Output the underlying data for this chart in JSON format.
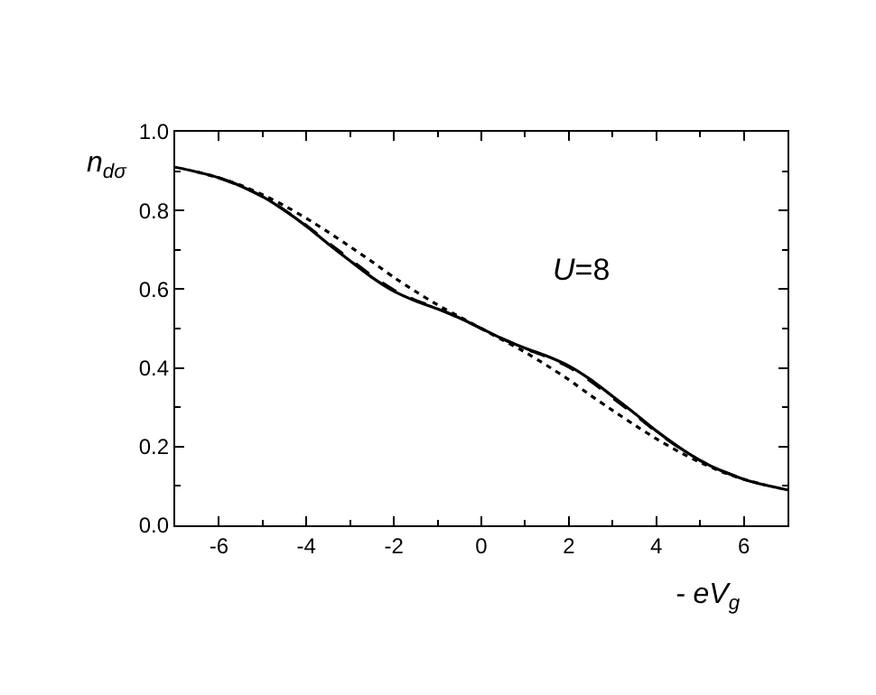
{
  "chart_data": {
    "type": "line",
    "xlabel": "- eV$_{g}$",
    "ylabel": "n$_{dσ}$",
    "annotations": [
      "U=8"
    ],
    "x": [
      -7,
      -6.5,
      -6,
      -5.5,
      -5,
      -4.5,
      -4,
      -3.5,
      -3,
      -2.5,
      -2,
      -1.5,
      -1,
      -0.5,
      0,
      0.5,
      1,
      1.5,
      2,
      2.5,
      3,
      3.5,
      4,
      4.5,
      5,
      5.5,
      6,
      6.5,
      7
    ],
    "series": [
      {
        "color": "#000000",
        "line_style": "solid",
        "values": [
          0.91,
          0.898,
          0.883,
          0.862,
          0.835,
          0.8,
          0.76,
          0.715,
          0.672,
          0.63,
          0.595,
          0.57,
          0.55,
          0.527,
          0.5,
          0.473,
          0.45,
          0.43,
          0.405,
          0.37,
          0.328,
          0.285,
          0.24,
          0.2,
          0.165,
          0.138,
          0.117,
          0.102,
          0.09
        ]
      },
      {
        "color": "#000000",
        "line_style": "dashed",
        "values": [
          null,
          null,
          0.883,
          0.862,
          0.835,
          0.801,
          0.762,
          0.718,
          0.676,
          0.634,
          0.598,
          0.572,
          0.551,
          0.527,
          0.5,
          0.473,
          0.449,
          0.428,
          0.402,
          0.366,
          0.324,
          0.282,
          0.238,
          0.199,
          0.165,
          0.138,
          0.117,
          null,
          null
        ]
      },
      {
        "color": "#000000",
        "line_style": "dotted",
        "values": [
          null,
          0.898,
          0.883,
          0.864,
          0.84,
          0.812,
          0.78,
          0.745,
          0.708,
          0.67,
          0.63,
          0.594,
          0.56,
          0.53,
          0.5,
          0.47,
          0.44,
          0.406,
          0.37,
          0.33,
          0.292,
          0.255,
          0.22,
          0.188,
          0.16,
          0.136,
          0.117,
          0.102,
          null
        ]
      }
    ],
    "xlim": [
      -7,
      7
    ],
    "xticks": [
      -6,
      -4,
      -2,
      0,
      2,
      4,
      6
    ],
    "ylim": [
      0,
      1
    ],
    "yticks": [
      {
        "value": 0,
        "label": "0.0"
      },
      {
        "value": 0.2,
        "label": "0.2"
      },
      {
        "value": 0.4,
        "label": "0.4"
      },
      {
        "value": 0.6,
        "label": "0.6"
      },
      {
        "value": 0.8,
        "label": "0.8"
      },
      {
        "value": 1,
        "label": "1.0"
      }
    ]
  }
}
